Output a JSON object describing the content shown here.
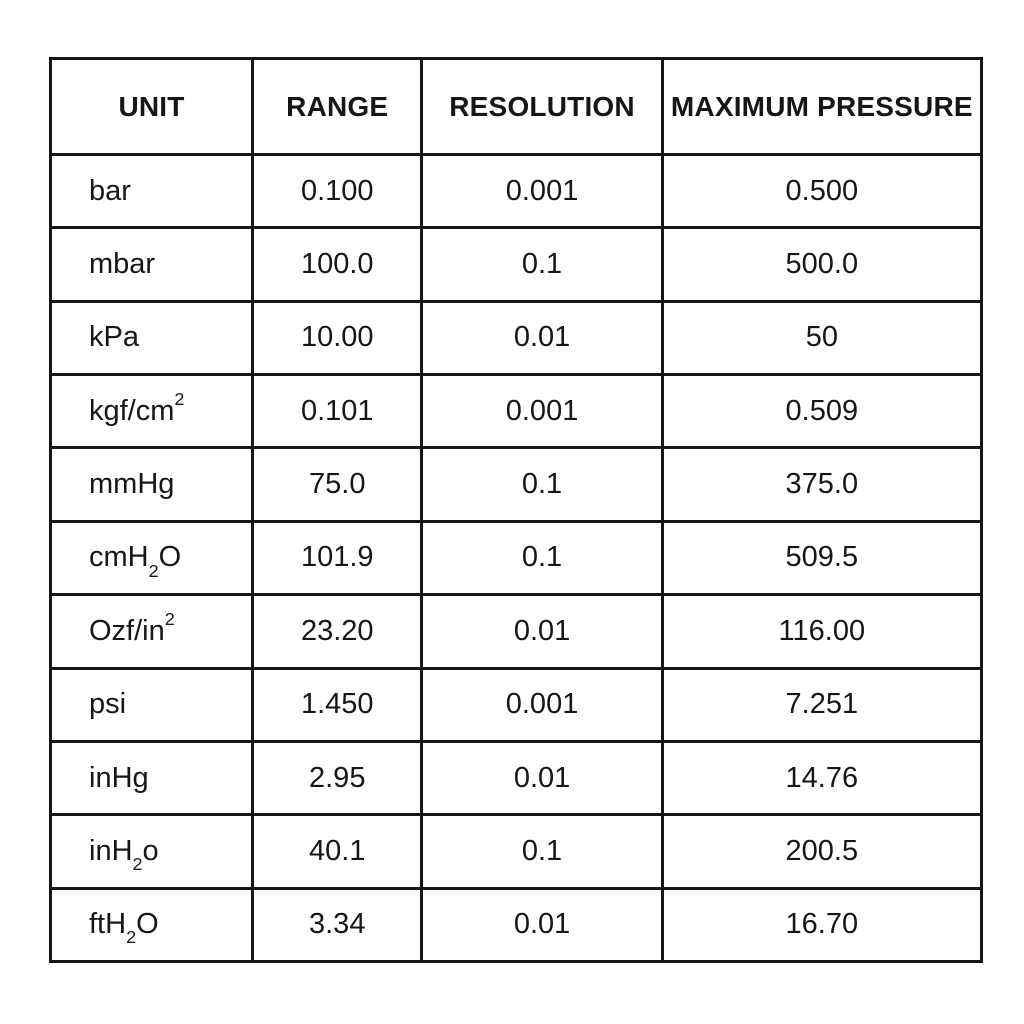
{
  "table": {
    "colors": {
      "text": "#161616",
      "border": "#161616",
      "background": "#ffffff"
    },
    "columns": [
      {
        "key": "unit",
        "label": "UNIT"
      },
      {
        "key": "range",
        "label": "RANGE"
      },
      {
        "key": "resolution",
        "label": "RESOLUTION"
      },
      {
        "key": "max_pressure",
        "label": "MAXIMUM PRESSURE"
      }
    ],
    "rows": [
      {
        "unit": [
          {
            "t": "bar"
          }
        ],
        "range": "0.100",
        "resolution": "0.001",
        "max_pressure": "0.500"
      },
      {
        "unit": [
          {
            "t": "mbar"
          }
        ],
        "range": "100.0",
        "resolution": "0.1",
        "max_pressure": "500.0"
      },
      {
        "unit": [
          {
            "t": "kPa"
          }
        ],
        "range": "10.00",
        "resolution": "0.01",
        "max_pressure": "50"
      },
      {
        "unit": [
          {
            "t": "kgf/cm"
          },
          {
            "t": "2",
            "script": "sup"
          }
        ],
        "range": "0.101",
        "resolution": "0.001",
        "max_pressure": "0.509"
      },
      {
        "unit": [
          {
            "t": "mmHg"
          }
        ],
        "range": "75.0",
        "resolution": "0.1",
        "max_pressure": "375.0"
      },
      {
        "unit": [
          {
            "t": "cmH"
          },
          {
            "t": "2",
            "script": "sub"
          },
          {
            "t": "O"
          }
        ],
        "range": "101.9",
        "resolution": "0.1",
        "max_pressure": "509.5"
      },
      {
        "unit": [
          {
            "t": "Ozf/in"
          },
          {
            "t": "2",
            "script": "sup"
          }
        ],
        "range": "23.20",
        "resolution": "0.01",
        "max_pressure": "116.00"
      },
      {
        "unit": [
          {
            "t": "psi"
          }
        ],
        "range": "1.450",
        "resolution": "0.001",
        "max_pressure": "7.251"
      },
      {
        "unit": [
          {
            "t": "inHg"
          }
        ],
        "range": "2.95",
        "resolution": "0.01",
        "max_pressure": "14.76"
      },
      {
        "unit": [
          {
            "t": "inH"
          },
          {
            "t": "2",
            "script": "sub"
          },
          {
            "t": "o"
          }
        ],
        "range": "40.1",
        "resolution": "0.1",
        "max_pressure": "200.5"
      },
      {
        "unit": [
          {
            "t": "ftH"
          },
          {
            "t": "2",
            "script": "sub"
          },
          {
            "t": "O"
          }
        ],
        "range": "3.34",
        "resolution": "0.01",
        "max_pressure": "16.70"
      }
    ]
  }
}
